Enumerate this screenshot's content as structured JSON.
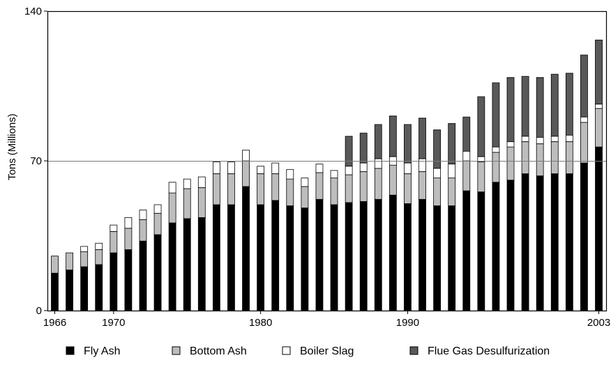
{
  "chart_data": {
    "type": "bar",
    "stacked": true,
    "title": "",
    "xlabel": "",
    "ylabel": "Tons (Millions)",
    "ylim": [
      0,
      140
    ],
    "y_ticks": [
      "0",
      "70",
      "140"
    ],
    "x_ticks": [
      "1966",
      "1970",
      "1980",
      "1990",
      "2003"
    ],
    "reference_line": 70,
    "grid": false,
    "legend_position": "bottom",
    "categories": [
      "1966",
      "1967",
      "1968",
      "1969",
      "1970",
      "1971",
      "1972",
      "1973",
      "1974",
      "1975",
      "1976",
      "1977",
      "1978",
      "1979",
      "1980",
      "1981",
      "1982",
      "1983",
      "1984",
      "1985",
      "1986",
      "1987",
      "1988",
      "1989",
      "1990",
      "1991",
      "1992",
      "1993",
      "1994",
      "1995",
      "1996",
      "1997",
      "1998",
      "1999",
      "2000",
      "2001",
      "2002",
      "2003"
    ],
    "series": [
      {
        "name": "Fly Ash",
        "color": "#000000",
        "values": [
          17.5,
          19,
          20.5,
          21.5,
          27,
          28.5,
          32.5,
          35.5,
          41,
          43,
          43.5,
          49.5,
          49.5,
          58,
          49.5,
          51.5,
          49,
          48,
          52,
          49.5,
          50.5,
          51,
          52,
          54,
          50,
          52,
          49,
          49,
          56,
          55.5,
          60,
          61,
          64,
          63,
          64,
          64,
          69,
          76.5
        ]
      },
      {
        "name": "Bottom Ash",
        "color": "#bdbdbd",
        "values": [
          8,
          8,
          7,
          7,
          10,
          10,
          10,
          10,
          14,
          14,
          14,
          14.5,
          14.5,
          12,
          14.5,
          12.5,
          12.5,
          10,
          12.5,
          12.5,
          13,
          14,
          14.5,
          14,
          14,
          13,
          13,
          13,
          14,
          14,
          14,
          15.5,
          15,
          15,
          15,
          15,
          19,
          18
        ]
      },
      {
        "name": "Boiler Slag",
        "color": "#ffffff",
        "values": [
          0,
          0,
          2.5,
          3,
          3,
          5,
          4.5,
          4,
          5,
          4.5,
          5,
          5.5,
          5.5,
          5,
          3.5,
          5,
          4.5,
          4,
          4,
          3.5,
          4,
          4,
          4.5,
          4,
          5,
          6,
          4.5,
          6.5,
          4.5,
          2.5,
          2.5,
          2.5,
          2.5,
          3,
          2.5,
          3,
          2.5,
          2
        ]
      },
      {
        "name": "Flue Gas Desulfurization",
        "color": "#595959",
        "values": [
          0,
          0,
          0,
          0,
          0,
          0,
          0,
          0,
          0,
          0,
          0,
          0,
          0,
          0,
          0,
          0,
          0,
          0,
          0,
          0,
          14,
          14,
          16,
          19,
          18,
          19,
          18,
          19,
          16,
          28,
          30,
          30,
          28,
          28,
          29,
          29,
          29,
          30
        ]
      }
    ]
  }
}
